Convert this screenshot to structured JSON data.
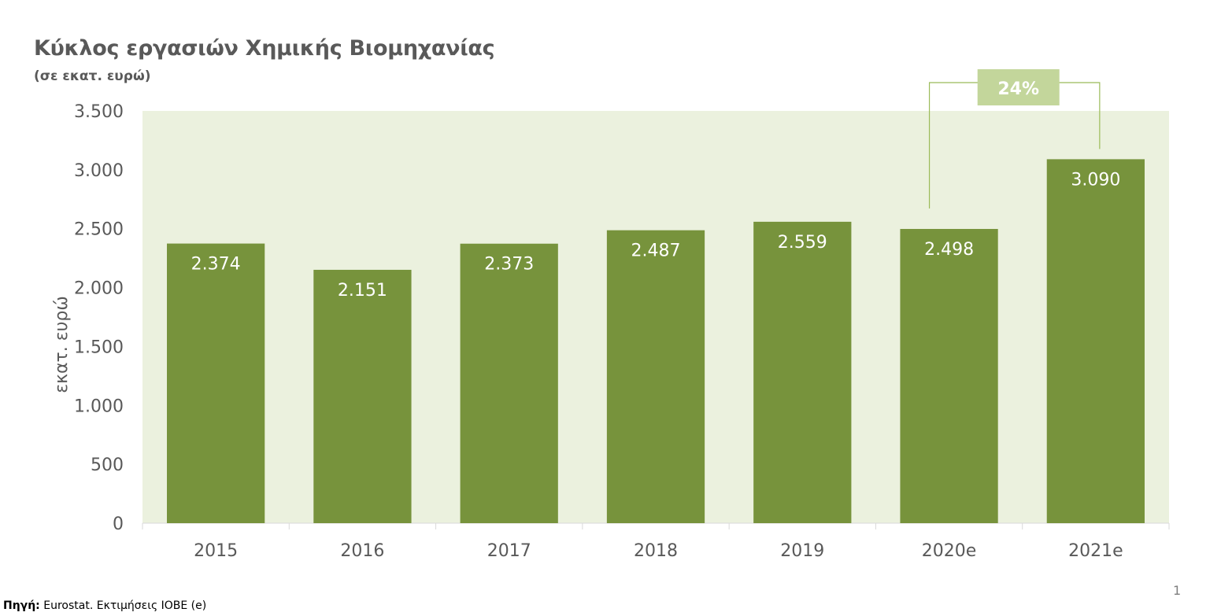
{
  "chart_data": {
    "type": "bar",
    "title": "Κύκλος εργασιών Χημικής Βιομηχανίας",
    "subtitle": "(σε εκατ. ευρώ)",
    "ylabel": "εκατ. ευρώ",
    "xlabel": "",
    "categories": [
      "2015",
      "2016",
      "2017",
      "2018",
      "2019",
      "2020e",
      "2021e"
    ],
    "values": [
      2374,
      2151,
      2373,
      2487,
      2559,
      2498,
      3090
    ],
    "value_labels": [
      "2.374",
      "2.151",
      "2.373",
      "2.487",
      "2.559",
      "2.498",
      "3.090"
    ],
    "ylim": [
      0,
      3500
    ],
    "yticks": [
      0,
      500,
      1000,
      1500,
      2000,
      2500,
      3000,
      3500
    ],
    "ytick_labels": [
      "0",
      "500",
      "1.000",
      "1.500",
      "2.000",
      "2.500",
      "3.000",
      "3.500"
    ],
    "annotation": {
      "text": "24%",
      "from": "2020e",
      "to": "2021e"
    },
    "grid": false,
    "legend": "none",
    "colors": {
      "bar": "#77933c",
      "plot_bg": "#ebf1de",
      "annotation_box": "#c3d69b",
      "bracket": "#9bbb59"
    }
  },
  "footer": {
    "source_label": "Πηγή:",
    "source_text": " Eurostat. Εκτιμήσεις ΙΟΒΕ (e)",
    "page_number": "1"
  }
}
